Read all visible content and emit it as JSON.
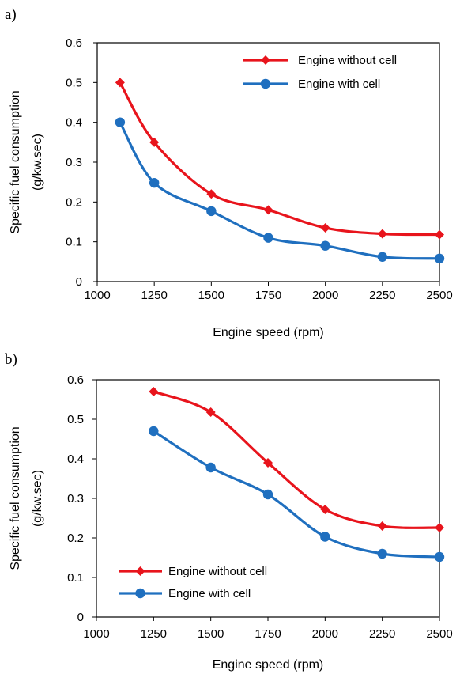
{
  "chart_data": [
    {
      "panel_label": "a)",
      "type": "line",
      "xlabel": "Engine speed (rpm)",
      "ylabel_line1": "Specific fuel consumption",
      "ylabel_line2": "(g/kw.sec)",
      "xlim": [
        1000,
        2500
      ],
      "ylim": [
        0,
        0.6
      ],
      "x_ticks": [
        "1000",
        "1250",
        "1500",
        "1750",
        "2000",
        "2250",
        "2500"
      ],
      "y_ticks": [
        "0",
        "0.1",
        "0.2",
        "0.3",
        "0.4",
        "0.5",
        "0.6"
      ],
      "grid": false,
      "legend_position": "top-right",
      "series": [
        {
          "name": "Engine without cell",
          "color": "#e8141c",
          "marker": "diamond",
          "x": [
            1100,
            1250,
            1500,
            1750,
            2000,
            2250,
            2500
          ],
          "values": [
            0.5,
            0.35,
            0.22,
            0.18,
            0.135,
            0.12,
            0.118
          ]
        },
        {
          "name": "Engine with cell",
          "color": "#1f6fbf",
          "marker": "circle",
          "x": [
            1100,
            1250,
            1500,
            1750,
            2000,
            2250,
            2500
          ],
          "values": [
            0.4,
            0.248,
            0.177,
            0.11,
            0.09,
            0.062,
            0.058
          ]
        }
      ]
    },
    {
      "panel_label": "b)",
      "type": "line",
      "xlabel": "Engine speed (rpm)",
      "ylabel_line1": "Specific fuel consumption",
      "ylabel_line2": "(g/kw.sec)",
      "xlim": [
        1000,
        2500
      ],
      "ylim": [
        0,
        0.6
      ],
      "x_ticks": [
        "1000",
        "1250",
        "1500",
        "1750",
        "2000",
        "2250",
        "2500"
      ],
      "y_ticks": [
        "0",
        "0.1",
        "0.2",
        "0.3",
        "0.4",
        "0.5",
        "0.6"
      ],
      "grid": false,
      "legend_position": "bottom-left",
      "series": [
        {
          "name": "Engine without cell",
          "color": "#e8141c",
          "marker": "diamond",
          "x": [
            1250,
            1500,
            1750,
            2000,
            2250,
            2500
          ],
          "values": [
            0.57,
            0.518,
            0.39,
            0.272,
            0.23,
            0.226
          ]
        },
        {
          "name": "Engine with cell",
          "color": "#1f6fbf",
          "marker": "circle",
          "x": [
            1250,
            1500,
            1750,
            2000,
            2250,
            2500
          ],
          "values": [
            0.47,
            0.378,
            0.31,
            0.203,
            0.16,
            0.152
          ]
        }
      ]
    }
  ]
}
